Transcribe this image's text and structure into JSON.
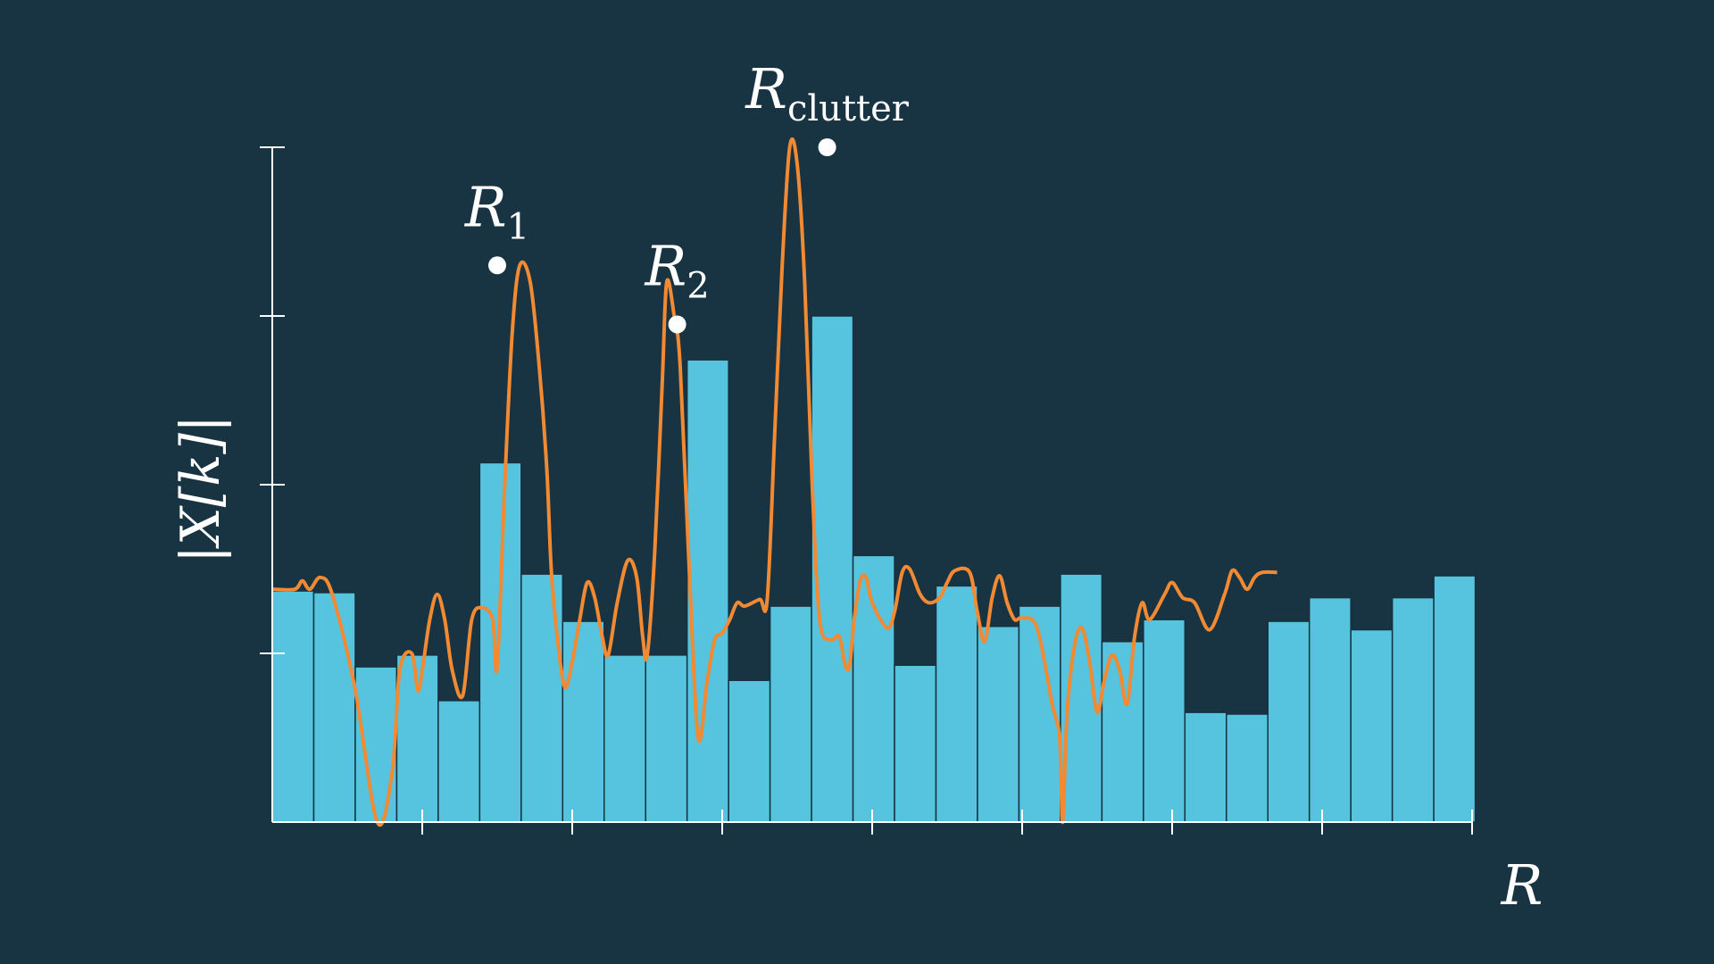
{
  "chart_data": {
    "type": "bar",
    "ylabel": "|X[k]|",
    "xlabel": "R",
    "ylim": [
      0,
      4
    ],
    "xlim": [
      0,
      8
    ],
    "y_ticks": [
      1,
      2,
      3,
      4
    ],
    "x_ticks": [
      1,
      2,
      3,
      4,
      5,
      6,
      7,
      8
    ],
    "grid": false,
    "colors": {
      "background": "#183342",
      "bars": "#56c3df",
      "bar_edge": "#15323f",
      "curve": "#f28a33",
      "axis": "#ffffff",
      "markers": "#ffffff"
    },
    "bar_width": 0.2766,
    "bars": [
      1.37,
      1.36,
      0.92,
      0.99,
      0.72,
      2.13,
      1.47,
      1.19,
      0.99,
      0.99,
      2.74,
      0.84,
      1.28,
      3.0,
      1.58,
      0.93,
      1.4,
      1.16,
      1.28,
      1.47,
      1.07,
      1.2,
      0.65,
      0.64,
      1.19,
      1.33,
      1.14,
      1.33,
      1.46
    ],
    "curve": {
      "name": "",
      "points": [
        [
          0.0,
          1.38
        ],
        [
          0.15,
          1.38
        ],
        [
          0.2,
          1.43
        ],
        [
          0.25,
          1.38
        ],
        [
          0.32,
          1.45
        ],
        [
          0.4,
          1.35
        ],
        [
          0.55,
          0.8
        ],
        [
          0.7,
          0.0
        ],
        [
          0.8,
          0.3
        ],
        [
          0.85,
          0.9
        ],
        [
          0.93,
          1.0
        ],
        [
          0.97,
          0.78
        ],
        [
          1.0,
          0.9
        ],
        [
          1.05,
          1.2
        ],
        [
          1.1,
          1.35
        ],
        [
          1.15,
          1.2
        ],
        [
          1.2,
          0.9
        ],
        [
          1.27,
          0.75
        ],
        [
          1.33,
          1.2
        ],
        [
          1.4,
          1.27
        ],
        [
          1.47,
          1.2
        ],
        [
          1.5,
          0.92
        ],
        [
          1.55,
          2.0
        ],
        [
          1.6,
          2.9
        ],
        [
          1.65,
          3.3
        ],
        [
          1.72,
          3.2
        ],
        [
          1.78,
          2.7
        ],
        [
          1.83,
          2.1
        ],
        [
          1.86,
          1.5
        ],
        [
          1.9,
          1.1
        ],
        [
          1.95,
          0.8
        ],
        [
          2.0,
          0.95
        ],
        [
          2.05,
          1.2
        ],
        [
          2.1,
          1.42
        ],
        [
          2.15,
          1.33
        ],
        [
          2.2,
          1.1
        ],
        [
          2.24,
          0.99
        ],
        [
          2.3,
          1.3
        ],
        [
          2.37,
          1.55
        ],
        [
          2.43,
          1.45
        ],
        [
          2.47,
          1.1
        ],
        [
          2.5,
          0.99
        ],
        [
          2.55,
          1.6
        ],
        [
          2.6,
          2.6
        ],
        [
          2.63,
          3.2
        ],
        [
          2.68,
          3.0
        ],
        [
          2.72,
          2.7
        ],
        [
          2.78,
          1.5
        ],
        [
          2.84,
          0.5
        ],
        [
          2.9,
          0.84
        ],
        [
          2.95,
          1.08
        ],
        [
          3.0,
          1.12
        ],
        [
          3.05,
          1.2
        ],
        [
          3.1,
          1.3
        ],
        [
          3.15,
          1.28
        ],
        [
          3.25,
          1.32
        ],
        [
          3.3,
          1.32
        ],
        [
          3.35,
          2.3
        ],
        [
          3.4,
          3.3
        ],
        [
          3.45,
          4.0
        ],
        [
          3.5,
          3.9
        ],
        [
          3.55,
          3.2
        ],
        [
          3.6,
          2.0
        ],
        [
          3.65,
          1.2
        ],
        [
          3.72,
          1.08
        ],
        [
          3.78,
          1.1
        ],
        [
          3.82,
          0.93
        ],
        [
          3.85,
          0.93
        ],
        [
          3.88,
          1.2
        ],
        [
          3.92,
          1.43
        ],
        [
          3.96,
          1.45
        ],
        [
          4.0,
          1.3
        ],
        [
          4.1,
          1.15
        ],
        [
          4.15,
          1.25
        ],
        [
          4.2,
          1.48
        ],
        [
          4.25,
          1.5
        ],
        [
          4.32,
          1.35
        ],
        [
          4.38,
          1.3
        ],
        [
          4.45,
          1.33
        ],
        [
          4.5,
          1.42
        ],
        [
          4.55,
          1.49
        ],
        [
          4.65,
          1.48
        ],
        [
          4.7,
          1.25
        ],
        [
          4.75,
          1.07
        ],
        [
          4.8,
          1.33
        ],
        [
          4.85,
          1.46
        ],
        [
          4.9,
          1.3
        ],
        [
          4.95,
          1.2
        ],
        [
          5.0,
          1.21
        ],
        [
          5.1,
          1.15
        ],
        [
          5.2,
          0.7
        ],
        [
          5.25,
          0.5
        ],
        [
          5.27,
          0.0
        ],
        [
          5.3,
          0.65
        ],
        [
          5.35,
          1.05
        ],
        [
          5.4,
          1.15
        ],
        [
          5.45,
          0.95
        ],
        [
          5.5,
          0.65
        ],
        [
          5.55,
          0.85
        ],
        [
          5.6,
          0.99
        ],
        [
          5.65,
          0.9
        ],
        [
          5.7,
          0.7
        ],
        [
          5.75,
          1.1
        ],
        [
          5.8,
          1.3
        ],
        [
          5.85,
          1.2
        ],
        [
          5.95,
          1.35
        ],
        [
          6.0,
          1.42
        ],
        [
          6.07,
          1.33
        ],
        [
          6.15,
          1.3
        ],
        [
          6.25,
          1.14
        ],
        [
          6.35,
          1.35
        ],
        [
          6.4,
          1.49
        ],
        [
          6.45,
          1.45
        ],
        [
          6.5,
          1.38
        ],
        [
          6.55,
          1.45
        ],
        [
          6.6,
          1.48
        ],
        [
          6.7,
          1.48
        ]
      ]
    },
    "peaks": [
      {
        "x": 1.5,
        "y": 3.3,
        "label_main": "R",
        "label_sub": "1"
      },
      {
        "x": 2.7,
        "y": 2.95,
        "label_main": "R",
        "label_sub": "2"
      },
      {
        "x": 3.7,
        "y": 4.0,
        "label_main": "R",
        "label_sub": "clutter"
      }
    ]
  }
}
